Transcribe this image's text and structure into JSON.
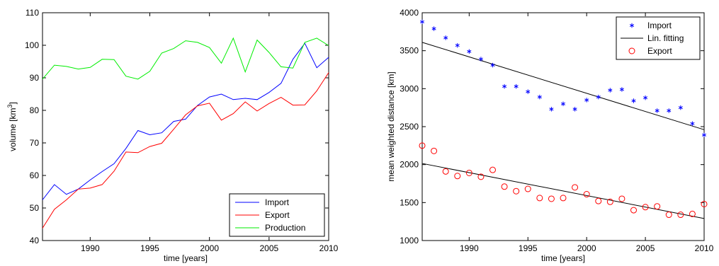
{
  "chart_data": [
    {
      "type": "line",
      "xlabel": "time [years]",
      "ylabel_main": "volume [km",
      "ylabel_sup": "3",
      "ylabel_end": "]",
      "xlim": [
        1986,
        2010
      ],
      "ylim": [
        40,
        110
      ],
      "xticks": [
        1990,
        1995,
        2000,
        2005,
        2010
      ],
      "yticks": [
        40,
        50,
        60,
        70,
        80,
        90,
        100,
        110
      ],
      "grid": false,
      "legend_position": "bottom-right",
      "x": [
        1986,
        1987,
        1988,
        1989,
        1990,
        1991,
        1992,
        1993,
        1994,
        1995,
        1996,
        1997,
        1998,
        1999,
        2000,
        2001,
        2002,
        2003,
        2004,
        2005,
        2006,
        2007,
        2008,
        2009,
        2010
      ],
      "series": [
        {
          "name": "Import",
          "color": "#0000ff",
          "values": [
            52.5,
            57.2,
            54.2,
            55.8,
            58.6,
            61.2,
            63.6,
            68.3,
            73.8,
            72.5,
            73.1,
            76.6,
            77.3,
            81.5,
            84.1,
            85.0,
            83.3,
            83.7,
            83.3,
            85.5,
            88.3,
            95.7,
            100.6,
            93.1,
            96.3
          ]
        },
        {
          "name": "Export",
          "color": "#ff0000",
          "values": [
            43.8,
            49.6,
            52.5,
            55.8,
            56.1,
            57.2,
            61.3,
            67.2,
            67.0,
            68.9,
            69.9,
            74.2,
            78.6,
            81.4,
            82.2,
            77.0,
            79.0,
            82.6,
            79.8,
            82.1,
            84.0,
            81.6,
            81.7,
            86.0,
            91.6
          ]
        },
        {
          "name": "Production",
          "color": "#00ee00",
          "values": [
            89.6,
            93.9,
            93.5,
            92.7,
            93.2,
            95.7,
            95.6,
            90.5,
            89.6,
            92.0,
            97.6,
            99.0,
            101.4,
            100.9,
            99.3,
            94.5,
            102.2,
            91.8,
            101.6,
            97.8,
            93.4,
            93.0,
            100.9,
            102.2,
            99.9
          ]
        }
      ]
    },
    {
      "type": "scatter",
      "xlabel": "time [years]",
      "ylabel": "mean weighted distance [km]",
      "xlim": [
        1986,
        2010
      ],
      "ylim": [
        1000,
        4000
      ],
      "xticks": [
        1990,
        1995,
        2000,
        2005,
        2010
      ],
      "yticks": [
        1000,
        1500,
        2000,
        2500,
        3000,
        3500,
        4000
      ],
      "grid": false,
      "legend_position": "top-right",
      "x": [
        1986,
        1987,
        1988,
        1989,
        1990,
        1991,
        1992,
        1993,
        1994,
        1995,
        1996,
        1997,
        1998,
        1999,
        2000,
        2001,
        2002,
        2003,
        2004,
        2005,
        2006,
        2007,
        2008,
        2009,
        2010
      ],
      "series": [
        {
          "name": "Import",
          "marker": "asterisk",
          "color": "#0000ff",
          "values": [
            3880,
            3790,
            3670,
            3570,
            3490,
            3390,
            3310,
            3030,
            3030,
            2960,
            2890,
            2730,
            2800,
            2730,
            2850,
            2890,
            2980,
            2990,
            2840,
            2880,
            2710,
            2710,
            2750,
            2540,
            2390
          ]
        },
        {
          "name": "Lin. fitting",
          "marker": "line",
          "color": "#000000",
          "fits": [
            {
              "x": [
                1986,
                2010
              ],
              "y": [
                3610,
                2460
              ]
            },
            {
              "x": [
                1986,
                2010
              ],
              "y": [
                2015,
                1290
              ]
            }
          ]
        },
        {
          "name": "Export",
          "marker": "circle",
          "color": "#ff0000",
          "values": [
            2250,
            2180,
            1910,
            1850,
            1890,
            1840,
            1930,
            1710,
            1650,
            1680,
            1560,
            1550,
            1560,
            1700,
            1610,
            1520,
            1510,
            1550,
            1400,
            1440,
            1450,
            1340,
            1340,
            1350,
            1480
          ]
        }
      ]
    }
  ]
}
